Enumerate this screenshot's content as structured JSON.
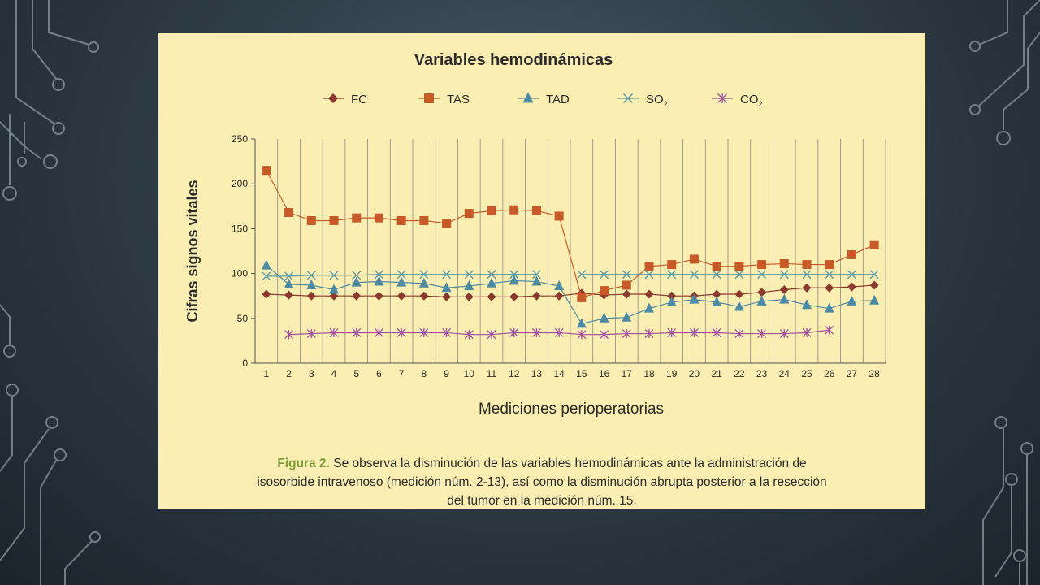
{
  "chart_data": {
    "type": "line",
    "title": "Variables hemodinámicas",
    "xlabel": "Mediciones perioperatorias",
    "ylabel": "Cifras signos vitales",
    "ylim": [
      0,
      250
    ],
    "yticks": [
      0,
      50,
      100,
      150,
      200,
      250
    ],
    "x": [
      1,
      2,
      3,
      4,
      5,
      6,
      7,
      8,
      9,
      10,
      11,
      12,
      13,
      14,
      15,
      16,
      17,
      18,
      19,
      20,
      21,
      22,
      23,
      24,
      25,
      26,
      27,
      28
    ],
    "grid": "vertical",
    "legend_position": "top",
    "series": [
      {
        "name": "FC",
        "sub": "",
        "marker": "diamond",
        "color": "#8b3a2e",
        "values": [
          77,
          76,
          75,
          75,
          75,
          75,
          75,
          75,
          74,
          74,
          74,
          74,
          75,
          75,
          78,
          76,
          77,
          77,
          75,
          75,
          77,
          77,
          79,
          82,
          84,
          84,
          85,
          87
        ]
      },
      {
        "name": "TAS",
        "sub": "",
        "marker": "square",
        "color": "#c85a2a",
        "values": [
          215,
          168,
          159,
          159,
          162,
          162,
          159,
          159,
          156,
          167,
          170,
          171,
          170,
          164,
          73,
          81,
          87,
          108,
          110,
          116,
          108,
          108,
          110,
          111,
          110,
          110,
          121,
          132
        ]
      },
      {
        "name": "TAD",
        "sub": "",
        "marker": "triangle",
        "color": "#4d8aa3",
        "values": [
          109,
          88,
          87,
          82,
          90,
          91,
          90,
          89,
          84,
          86,
          89,
          92,
          91,
          86,
          44,
          50,
          51,
          61,
          68,
          71,
          68,
          63,
          69,
          71,
          65,
          61,
          69,
          70
        ]
      },
      {
        "name": "SO",
        "sub": "2",
        "marker": "x",
        "color": "#5c9aa6",
        "values": [
          97,
          97,
          98,
          98,
          98,
          99,
          99,
          99,
          99,
          99,
          99,
          99,
          99,
          null,
          99,
          99,
          99,
          99,
          99,
          99,
          99,
          99,
          99,
          99,
          99,
          99,
          99,
          99
        ]
      },
      {
        "name": "CO",
        "sub": "2",
        "marker": "asterisk",
        "color": "#a050a0",
        "values": [
          null,
          32,
          33,
          34,
          34,
          34,
          34,
          34,
          34,
          32,
          32,
          34,
          34,
          34,
          32,
          32,
          33,
          33,
          34,
          34,
          34,
          33,
          33,
          33,
          34,
          37,
          null,
          null
        ]
      }
    ]
  },
  "caption": {
    "label": "Figura 2.",
    "line1": " Se observa la disminución de las variables hemodinámicas ante la administración de",
    "line2": "isosorbide intravenoso (medición núm. 2-13), así como la disminución abrupta posterior a la resección",
    "line3": "del tumor en la medición núm. 15."
  }
}
